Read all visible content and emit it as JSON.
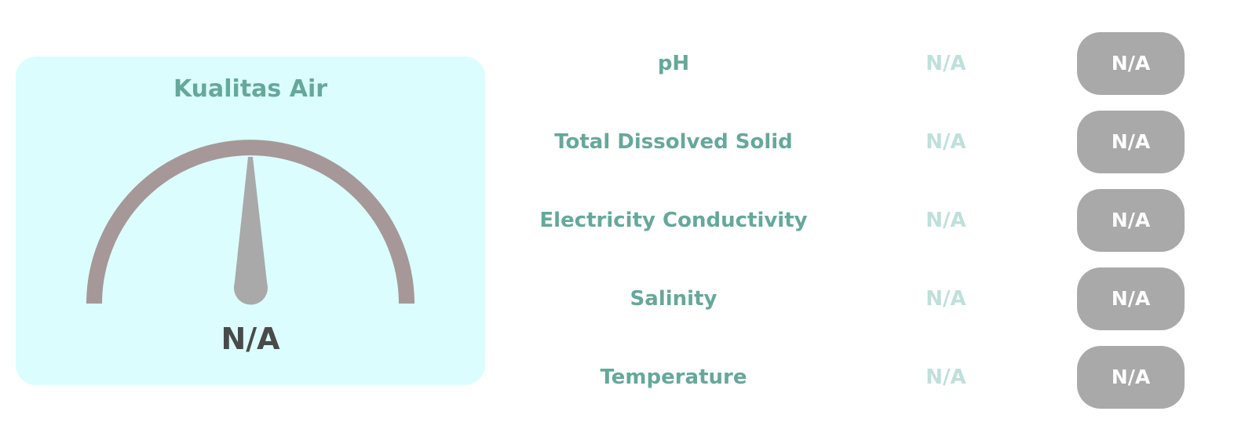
{
  "gauge": {
    "title": "Kualitas Air",
    "value": "N/A",
    "colors": {
      "card_background": "#dbfdfd",
      "arc": "#a69898",
      "needle": "#a9a9a9",
      "title": "#66a89b",
      "value": "#4a4a4a"
    }
  },
  "parameters": [
    {
      "label": "pH",
      "value": "N/A",
      "status": "N/A"
    },
    {
      "label": "Total Dissolved Solid",
      "value": "N/A",
      "status": "N/A"
    },
    {
      "label": "Electricity Conductivity",
      "value": "N/A",
      "status": "N/A"
    },
    {
      "label": "Salinity",
      "value": "N/A",
      "status": "N/A"
    },
    {
      "label": "Temperature",
      "value": "N/A",
      "status": "N/A"
    }
  ],
  "colors": {
    "label": "#66a89b",
    "value": "#bfe0da",
    "status_pill": "#a9a9a9",
    "status_text": "#ffffff"
  }
}
